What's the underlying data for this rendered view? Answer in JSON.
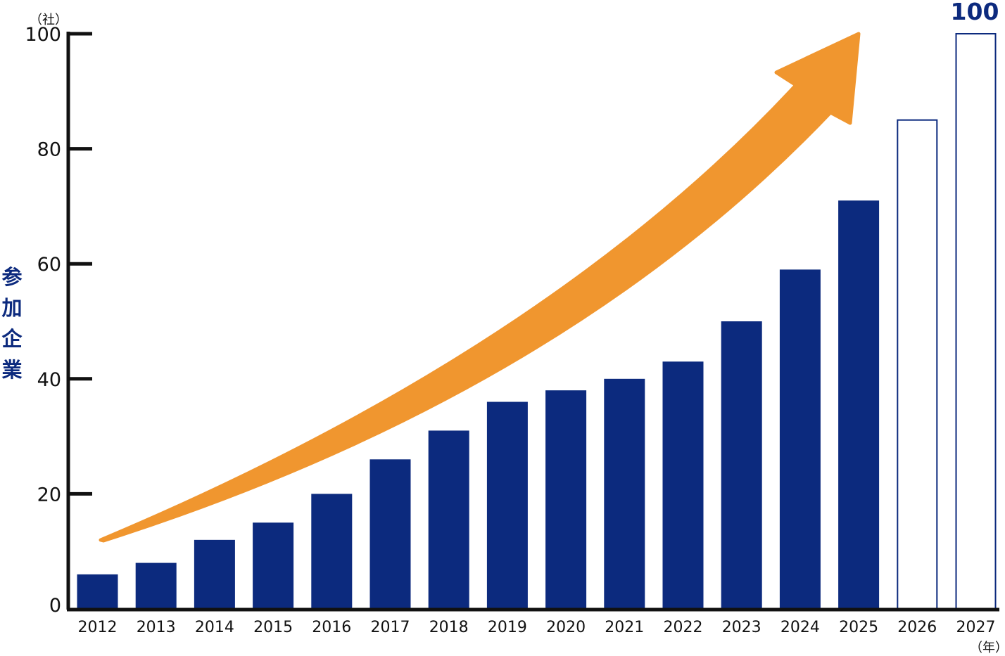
{
  "chart_data": {
    "type": "bar",
    "categories": [
      "2012",
      "2013",
      "2014",
      "2015",
      "2016",
      "2017",
      "2018",
      "2019",
      "2020",
      "2021",
      "2022",
      "2023",
      "2024",
      "2025",
      "2026",
      "2027"
    ],
    "values": [
      6,
      8,
      12,
      15,
      20,
      26,
      31,
      36,
      38,
      40,
      43,
      50,
      59,
      71,
      85,
      100
    ],
    "bar_style": [
      "filled",
      "filled",
      "filled",
      "filled",
      "filled",
      "filled",
      "filled",
      "filled",
      "filled",
      "filled",
      "filled",
      "filled",
      "filled",
      "filled",
      "outline",
      "outline"
    ],
    "ylabel": "参加企業",
    "y_unit": "（社）",
    "x_unit": "（年）",
    "ylim": [
      0,
      100
    ],
    "yticks": [
      0,
      20,
      40,
      60,
      80,
      100
    ],
    "annotation": "100",
    "arrow": "upward trend arrow",
    "colors": {
      "bar": "#0c2a7e",
      "outline": "#0c2a7e",
      "arrow": "#f0962f",
      "axis": "#111111"
    }
  }
}
